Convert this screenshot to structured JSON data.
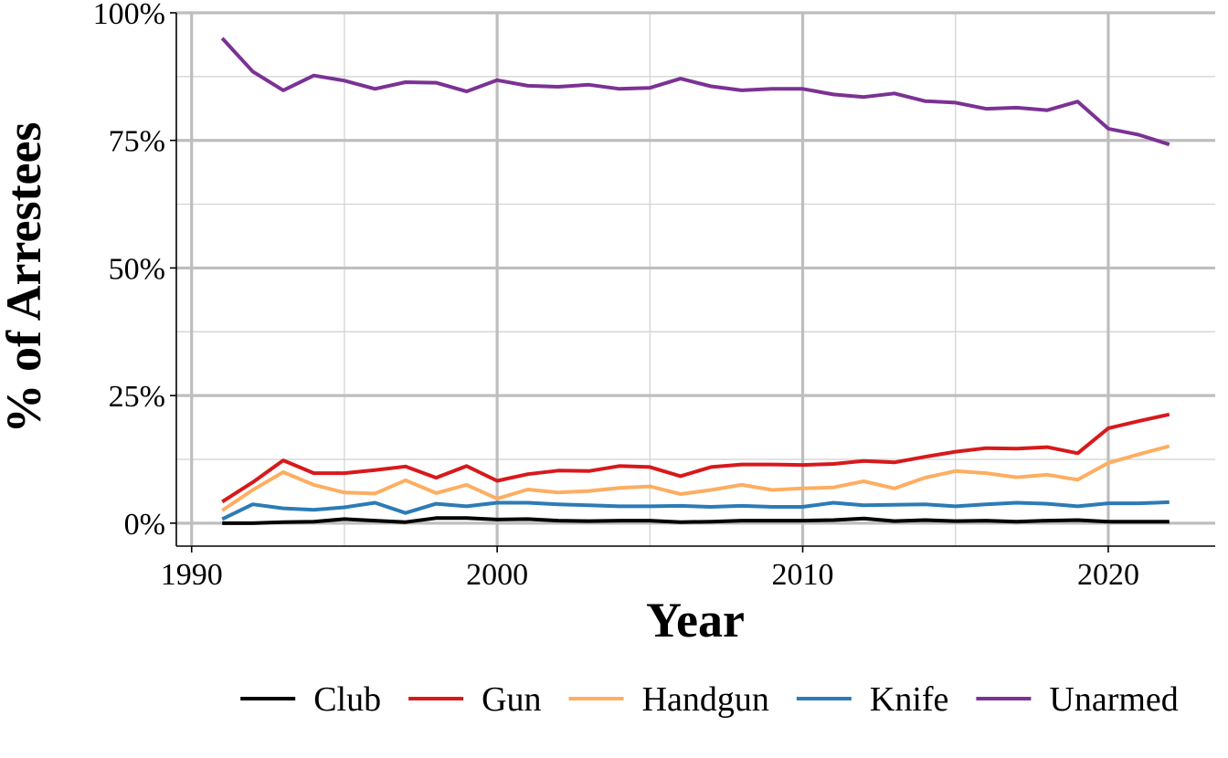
{
  "chart_data": {
    "type": "line",
    "xlabel": "Year",
    "ylabel": "% of Arrestees",
    "xlim": [
      1989.5,
      2023.5
    ],
    "ylim": [
      -4.5,
      100
    ],
    "x_ticks": [
      1990,
      2000,
      2010,
      2020
    ],
    "x_minor_ticks": [
      1995,
      2005,
      2015
    ],
    "y_ticks": [
      0,
      25,
      50,
      75,
      100
    ],
    "y_tick_labels": [
      "0%",
      "25%",
      "50%",
      "75%",
      "100%"
    ],
    "y_minor_ticks": [
      12.5,
      37.5,
      62.5,
      87.5
    ],
    "grid": true,
    "legend_position": "bottom",
    "x": [
      1991,
      1992,
      1993,
      1994,
      1995,
      1996,
      1997,
      1998,
      1999,
      2000,
      2001,
      2002,
      2003,
      2004,
      2005,
      2006,
      2007,
      2008,
      2009,
      2010,
      2011,
      2012,
      2013,
      2014,
      2015,
      2016,
      2017,
      2018,
      2019,
      2020,
      2021,
      2022
    ],
    "series": [
      {
        "name": "Club",
        "color": "#000000",
        "values": [
          0.0,
          0.0,
          0.2,
          0.3,
          0.8,
          0.5,
          0.2,
          1.0,
          1.0,
          0.7,
          0.8,
          0.5,
          0.4,
          0.5,
          0.5,
          0.2,
          0.3,
          0.5,
          0.5,
          0.5,
          0.6,
          0.9,
          0.4,
          0.6,
          0.4,
          0.5,
          0.3,
          0.5,
          0.6,
          0.3,
          0.3,
          0.3
        ]
      },
      {
        "name": "Gun",
        "color": "#d7191c",
        "values": [
          4.2,
          8.0,
          12.3,
          9.8,
          9.8,
          10.4,
          11.1,
          8.9,
          11.2,
          8.3,
          9.6,
          10.3,
          10.2,
          11.2,
          11.0,
          9.2,
          11.0,
          11.5,
          11.5,
          11.4,
          11.6,
          12.2,
          11.9,
          13.0,
          14.0,
          14.7,
          14.6,
          14.9,
          13.7,
          18.6,
          20.0,
          21.3
        ]
      },
      {
        "name": "Handgun",
        "color": "#fdae61",
        "values": [
          2.5,
          6.5,
          10.0,
          7.5,
          6.0,
          5.8,
          8.4,
          5.9,
          7.5,
          4.8,
          6.6,
          6.0,
          6.3,
          6.9,
          7.2,
          5.7,
          6.5,
          7.5,
          6.5,
          6.8,
          7.0,
          8.2,
          6.8,
          8.9,
          10.2,
          9.8,
          9.0,
          9.5,
          8.5,
          11.8,
          13.5,
          15.1
        ]
      },
      {
        "name": "Knife",
        "color": "#2c7bb6",
        "values": [
          0.8,
          3.7,
          2.9,
          2.6,
          3.1,
          4.0,
          2.0,
          3.8,
          3.3,
          4.0,
          4.0,
          3.7,
          3.5,
          3.3,
          3.3,
          3.4,
          3.2,
          3.4,
          3.2,
          3.2,
          4.0,
          3.5,
          3.6,
          3.7,
          3.3,
          3.7,
          4.0,
          3.8,
          3.3,
          3.9,
          3.9,
          4.1
        ]
      },
      {
        "name": "Unarmed",
        "color": "#7b3294",
        "values": [
          95.0,
          88.5,
          84.8,
          87.7,
          86.7,
          85.1,
          86.4,
          86.3,
          84.6,
          86.8,
          85.7,
          85.5,
          85.9,
          85.1,
          85.3,
          87.1,
          85.6,
          84.8,
          85.1,
          85.1,
          84.0,
          83.5,
          84.2,
          82.7,
          82.4,
          81.2,
          81.4,
          80.9,
          82.6,
          77.3,
          76.1,
          74.2
        ]
      }
    ]
  }
}
